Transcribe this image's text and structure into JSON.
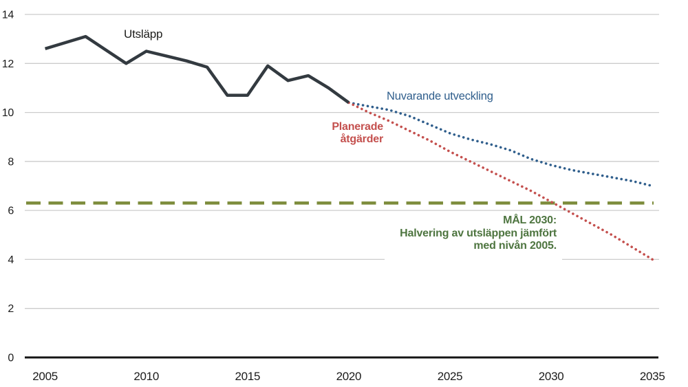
{
  "labels": {
    "emissions": "Utsläpp",
    "current": "Nuvarande utveckling",
    "planned_line1": "Planerade",
    "planned_line2": "åtgärder",
    "goal_line1": "MÅL 2030:",
    "goal_line2": "Halvering av utsläppen jämfört",
    "goal_line3": "med nivån 2005."
  },
  "colors": {
    "historical": "#333a40",
    "current": "#2f5e8c",
    "planned": "#c4504e",
    "goal_line": "#7d8c3c",
    "goal_text": "#4e7540",
    "grid": "#cccccc",
    "axis": "#141414",
    "tick_text": "#1b1b1b"
  },
  "chart_data": {
    "type": "line",
    "title": "",
    "xlabel": "",
    "ylabel": "",
    "ylim": [
      0,
      14
    ],
    "xlim": [
      2004,
      2035.4
    ],
    "y_ticks": [
      0,
      2,
      4,
      6,
      8,
      10,
      12,
      14
    ],
    "x_ticks": [
      2005,
      2010,
      2015,
      2020,
      2025,
      2030,
      2035
    ],
    "grid": "horizontal",
    "legend_position": "inline-annotations",
    "series": [
      {
        "name": "Utsläpp",
        "style": "solid",
        "color_key": "historical",
        "x": [
          2005,
          2006,
          2007,
          2008,
          2009,
          2010,
          2011,
          2012,
          2013,
          2014,
          2015,
          2016,
          2017,
          2018,
          2019,
          2020
        ],
        "values": [
          12.6,
          12.85,
          13.1,
          12.55,
          12.0,
          12.5,
          12.3,
          12.1,
          11.85,
          10.7,
          10.7,
          11.9,
          11.3,
          11.5,
          11.0,
          10.4
        ]
      },
      {
        "name": "Nuvarande utveckling",
        "style": "dotted",
        "color_key": "current",
        "x": [
          2020,
          2021,
          2022,
          2023,
          2024,
          2025,
          2026,
          2027,
          2028,
          2029,
          2030,
          2031,
          2032,
          2033,
          2034,
          2035
        ],
        "values": [
          10.4,
          10.25,
          10.1,
          9.85,
          9.5,
          9.15,
          8.9,
          8.7,
          8.45,
          8.1,
          7.85,
          7.65,
          7.5,
          7.35,
          7.2,
          7.0
        ]
      },
      {
        "name": "Planerade åtgärder",
        "style": "dotted",
        "color_key": "planned",
        "x": [
          2020,
          2021,
          2022,
          2023,
          2024,
          2025,
          2026,
          2027,
          2028,
          2029,
          2030,
          2031,
          2032,
          2033,
          2034,
          2035
        ],
        "values": [
          10.4,
          10.0,
          9.65,
          9.25,
          8.85,
          8.4,
          8.0,
          7.6,
          7.2,
          6.8,
          6.35,
          5.9,
          5.45,
          5.0,
          4.5,
          4.0
        ]
      }
    ],
    "reference_line": {
      "value": 6.3,
      "style": "dashed",
      "color_key": "goal_line",
      "label": "MÅL 2030: Halvering av utsläppen jämfört med nivån 2005."
    }
  }
}
